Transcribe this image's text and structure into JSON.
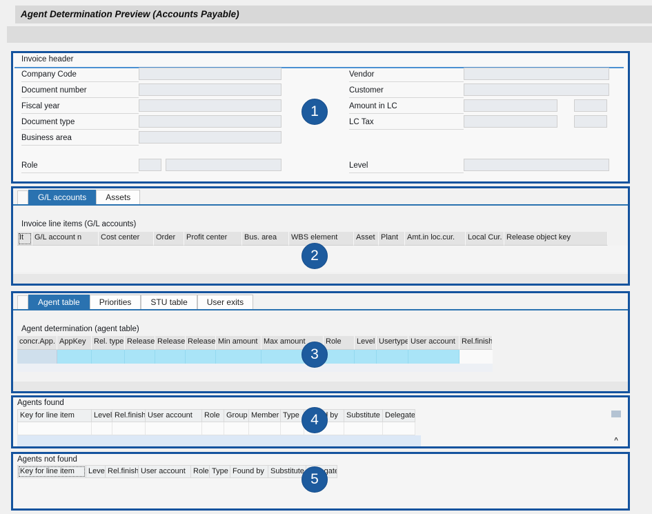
{
  "title": "Agent Determination Preview (Accounts Payable)",
  "badges": [
    "1",
    "2",
    "3",
    "4",
    "5"
  ],
  "icons": {
    "scroll_up": "^"
  },
  "colors": {
    "section_border": "#14539e",
    "active_tab": "#2a72b0",
    "selection_cyan": "#a9e4f7",
    "selection_blue_row": "#dce8f6",
    "badge_blue": "#1d5b9e"
  },
  "invoice_header": {
    "group_title": "Invoice header",
    "left_fields": {
      "company_code": "Company Code",
      "document_number": "Document number",
      "fiscal_year": "Fiscal year",
      "document_type": "Document type",
      "business_area": "Business area"
    },
    "right_fields": {
      "vendor": "Vendor",
      "customer": "Customer",
      "amount_in_lc": "Amount in LC",
      "lc_tax": "LC Tax"
    },
    "role_label": "Role",
    "level_label": "Level"
  },
  "line_items": {
    "tabs": [
      {
        "label": "G/L accounts",
        "active": true
      },
      {
        "label": "Assets",
        "active": false
      }
    ],
    "table_title": "Invoice line items (G/L accounts)",
    "columns": [
      "It",
      "G/L account n",
      "Cost center",
      "Order",
      "Profit center",
      "Bus. area",
      "WBS element",
      "Asset",
      "Plant",
      "Amt.in loc.cur.",
      "Local Cur.",
      "Release object key"
    ]
  },
  "agent_determination": {
    "tabs": [
      {
        "label": "Agent table",
        "active": true
      },
      {
        "label": "Priorities",
        "active": false
      },
      {
        "label": "STU table",
        "active": false
      },
      {
        "label": "User exits",
        "active": false
      }
    ],
    "table_title": "Agent determination (agent table)",
    "columns": [
      "concr.App.",
      "AppKey",
      "Rel. type",
      "Release",
      "Release",
      "Release",
      "Min amount",
      "Max amount",
      "Role",
      "Level",
      "Usertype",
      "User account",
      "Rel.finish"
    ]
  },
  "agents_found": {
    "title": "Agents found",
    "columns": [
      "Key for line item",
      "Level",
      "Rel.finish",
      "User account",
      "Role",
      "Group",
      "Member",
      "Type",
      "Found by",
      "Substitute",
      "Delegate"
    ]
  },
  "agents_not_found": {
    "title": "Agents not found",
    "columns": [
      "Key for line item",
      "Level",
      "Rel.finish",
      "User account",
      "Role",
      "Type",
      "Found by",
      "Substitute",
      "Delegate"
    ]
  }
}
